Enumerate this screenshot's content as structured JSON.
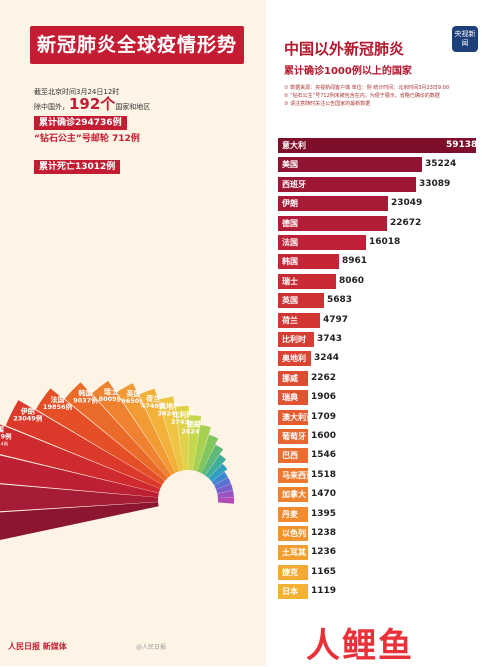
{
  "left": {
    "title": "新冠肺炎全球疫情形势",
    "asof": "截至北京时间3月24日12时",
    "countries_prefix": "除中国外，",
    "countries_num": "192个",
    "countries_suffix": "国家和地区",
    "cumulative": "累计确诊294736例",
    "diamond": "“钻石公主”号邮轮 712例",
    "deaths": "累计死亡13012例",
    "bottom_logo": "人民日报 新媒体",
    "bottom_mid": "@人民日报"
  },
  "wedges": [
    {
      "name": "意大利",
      "cases": "63927例",
      "deaths": "死亡6077例",
      "color": "#8c1630"
    },
    {
      "name": "美国",
      "cases": "46442例",
      "deaths": "死亡533例",
      "color": "#a51c36"
    },
    {
      "name": "西班牙",
      "cases": "33089例",
      "deaths": "死亡2182例",
      "color": "#bd2034"
    },
    {
      "name": "德国",
      "cases": "26729例",
      "deaths": "死亡114例",
      "color": "#cf2a2e"
    },
    {
      "name": "伊朗",
      "cases": "23049例",
      "deaths": "",
      "color": "#db3a2a"
    },
    {
      "name": "法国",
      "cases": "19856例",
      "deaths": "",
      "color": "#e44f28"
    },
    {
      "name": "韩国",
      "cases": "9037例",
      "deaths": "",
      "color": "#ea6a2a"
    },
    {
      "name": "瑞士",
      "cases": "8009例",
      "deaths": "",
      "color": "#ef8230"
    },
    {
      "name": "英国",
      "cases": "6650例",
      "deaths": "",
      "color": "#f29a34"
    },
    {
      "name": "荷兰",
      "cases": "4749例",
      "deaths": "",
      "color": "#f3b13a"
    },
    {
      "name": "奥地利",
      "cases": "3924例",
      "deaths": "",
      "color": "#eec542"
    },
    {
      "name": "比利时",
      "cases": "3743例",
      "deaths": "",
      "color": "#dfd24a"
    },
    {
      "name": "挪威",
      "cases": "2624例",
      "deaths": "",
      "color": "#c8d84c"
    },
    {
      "name": "",
      "cases": "",
      "deaths": "",
      "color": "#a8d152"
    },
    {
      "name": "",
      "cases": "",
      "deaths": "",
      "color": "#82c65e"
    },
    {
      "name": "",
      "cases": "",
      "deaths": "",
      "color": "#5eb97a"
    },
    {
      "name": "",
      "cases": "",
      "deaths": "",
      "color": "#3fae9a"
    },
    {
      "name": "",
      "cases": "",
      "deaths": "",
      "color": "#2f9fbd"
    },
    {
      "name": "",
      "cases": "",
      "deaths": "",
      "color": "#3d86cf"
    },
    {
      "name": "",
      "cases": "",
      "deaths": "",
      "color": "#5a6fd2"
    },
    {
      "name": "",
      "cases": "",
      "deaths": "",
      "color": "#7a5ecd"
    },
    {
      "name": "",
      "cases": "",
      "deaths": "",
      "color": "#9a52c4"
    },
    {
      "name": "",
      "cases": "",
      "deaths": "",
      "color": "#b44ab6"
    }
  ],
  "right": {
    "title": "中国以外新冠肺炎",
    "subtitle": "累计确诊1000例以上的国家",
    "notes": [
      "① 数据来源：央视新闻客户端  单位：例  统计时间：北京时间3月23日9:00",
      "② “钻石公主”号712例未被包含在内，为便于展示，省略已确诊的数据",
      "③ 请注意随时关注公告国家的最新数据"
    ],
    "badge": "央视新闻",
    "watermark": "人鲤鱼"
  },
  "chart_data": {
    "type": "bar",
    "title": "中国以外新冠肺炎",
    "subtitle": "累计确诊1000例以上的国家",
    "categories": [
      "意大利",
      "美国",
      "西班牙",
      "伊朗",
      "德国",
      "法国",
      "韩国",
      "瑞士",
      "英国",
      "荷兰",
      "比利时",
      "奥地利",
      "挪威",
      "瑞典",
      "澳大利亚",
      "葡萄牙",
      "巴西",
      "马来西亚",
      "加拿大",
      "丹麦",
      "以色列",
      "土耳其",
      "捷克",
      "日本"
    ],
    "values": [
      59138,
      35224,
      33089,
      23049,
      22672,
      16018,
      8961,
      8060,
      5683,
      4797,
      3743,
      3244,
      2262,
      1906,
      1709,
      1600,
      1546,
      1518,
      1470,
      1395,
      1238,
      1236,
      1165,
      1119
    ],
    "colors": [
      "#7e0f2a",
      "#901331",
      "#9d1734",
      "#a91a37",
      "#b41d38",
      "#be2138",
      "#c42636",
      "#c92b35",
      "#ce3134",
      "#d23733",
      "#d63d33",
      "#da4432",
      "#de4c31",
      "#e15430",
      "#e45c2f",
      "#e7652f",
      "#ea6e2e",
      "#ec782e",
      "#ee812e",
      "#f08b2f",
      "#f19530",
      "#f29f31",
      "#f3a932",
      "#f3b234"
    ]
  }
}
